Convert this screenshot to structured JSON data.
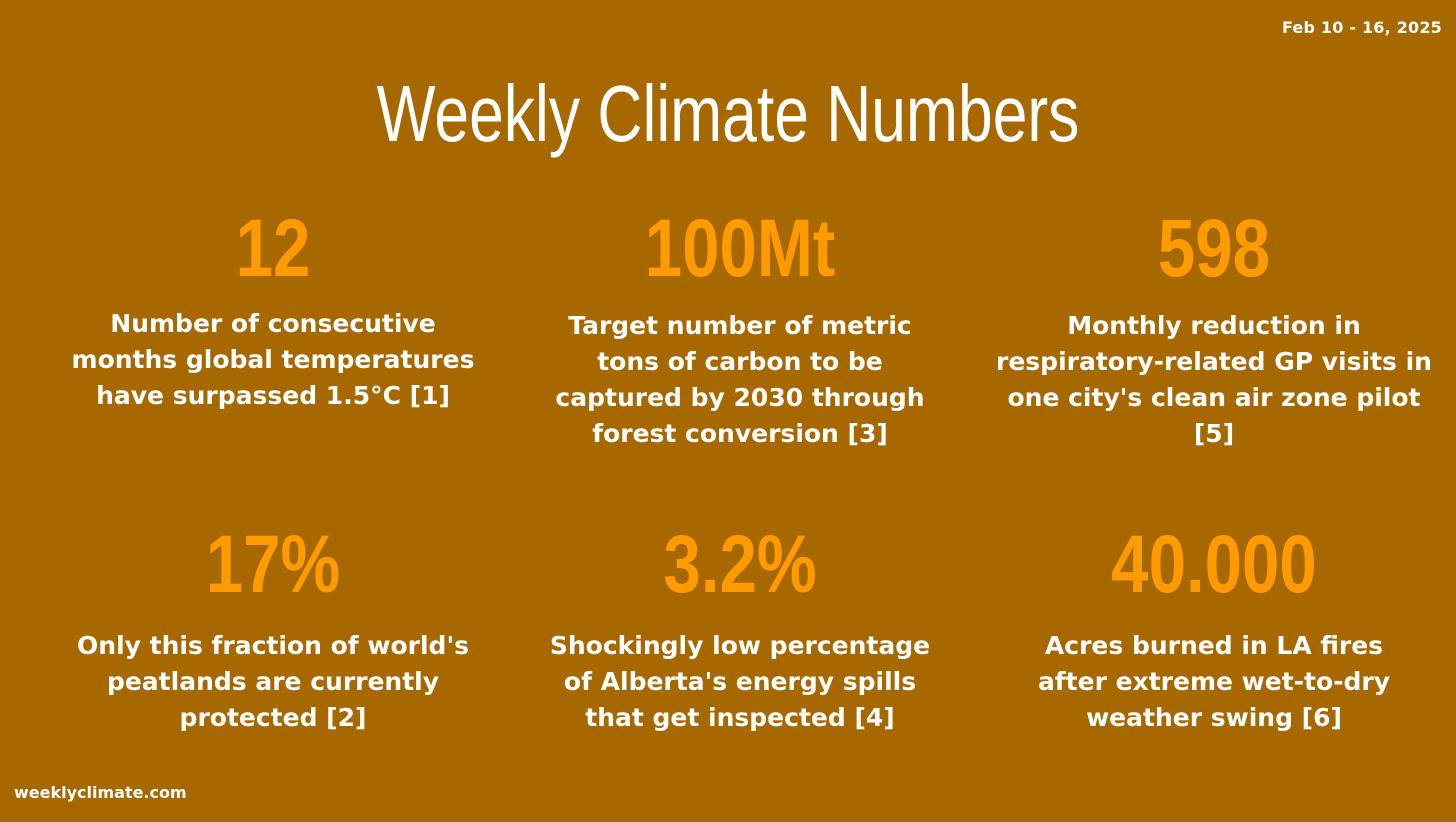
{
  "header": {
    "date_range": "Feb 10 - 16, 2025",
    "title": "Weekly Climate Numbers"
  },
  "stats": [
    {
      "value": "12",
      "description": "Number of consecutive months global temperatures have surpassed 1.5°C [1]"
    },
    {
      "value": "100Mt",
      "description": "Target number of metric tons of carbon to be captured by 2030 through forest conversion [3]"
    },
    {
      "value": "598",
      "description": "Monthly reduction in respiratory-related GP visits in one city's clean air zone pilot [5]"
    },
    {
      "value": "17%",
      "description": "Only this fraction of world's peatlands are currently protected [2]"
    },
    {
      "value": "3.2%",
      "description": "Shockingly low percentage of Alberta's energy spills that get inspected [4]"
    },
    {
      "value": "40.000",
      "description": "Acres burned in LA fires after extreme wet-to-dry weather swing [6]"
    }
  ],
  "footer": {
    "site": "weeklyclimate.com"
  },
  "colors": {
    "background": "#a86800",
    "value_accent": "#ff9a00",
    "text": "#ffffff"
  }
}
